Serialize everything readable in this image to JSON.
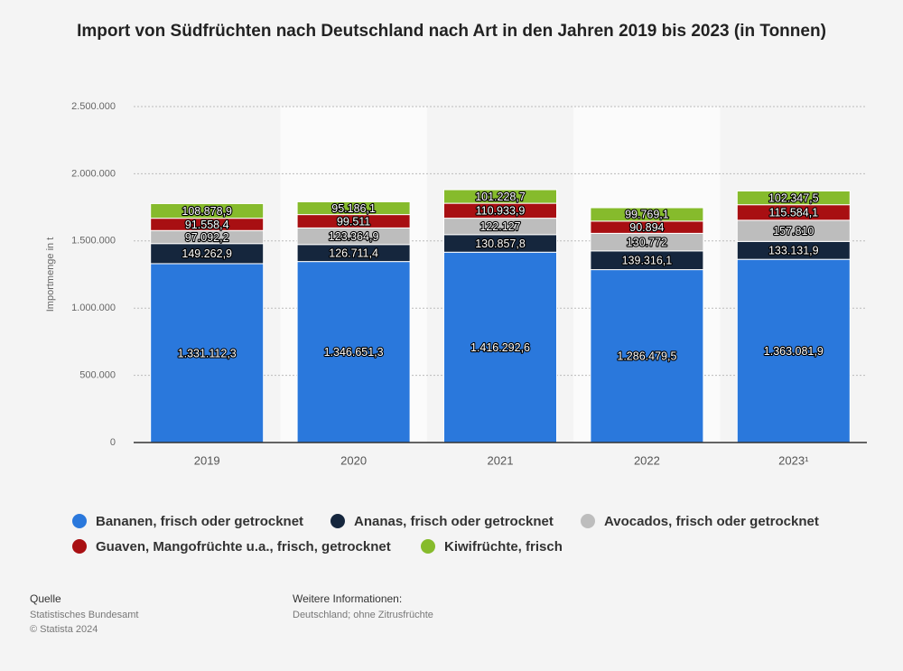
{
  "chart_data": {
    "type": "stacked-bar",
    "title": "Import von Südfrüchten nach Deutschland nach Art in den Jahren 2019 bis 2023 (in Tonnen)",
    "ylabel": "Importmenge in t",
    "categories": [
      "2019",
      "2020",
      "2021",
      "2022",
      "2023¹"
    ],
    "ylim": [
      0,
      2500000
    ],
    "yticks": [
      0,
      {
        "value": 500000,
        "label": "500.000"
      },
      {
        "value": 1000000,
        "label": "1.000.000"
      },
      {
        "value": 1500000,
        "label": "1.500.000"
      },
      {
        "value": 2000000,
        "label": "2.000.000"
      },
      {
        "value": 2500000,
        "label": "2.500.000"
      }
    ],
    "grid": true,
    "series": [
      {
        "name": "Bananen, frisch oder getrocknet",
        "color": "#2a78dc",
        "values": [
          1331112.3,
          1346651.3,
          1416292.6,
          1286479.5,
          1363081.9
        ],
        "value_labels": [
          "1.331.112,3",
          "1.346.651,3",
          "1.416.292,6",
          "1.286.479,5",
          "1.363.081,9"
        ]
      },
      {
        "name": "Ananas, frisch oder getrocknet",
        "color": "#15263d",
        "values": [
          149262.9,
          126711.4,
          130857.8,
          139316.1,
          133131.9
        ],
        "value_labels": [
          "149.262,9",
          "126.711,4",
          "130.857,8",
          "139.316,1",
          "133.131,9"
        ]
      },
      {
        "name": "Avocados, frisch oder getrocknet",
        "color": "#bdbdbd",
        "values": [
          97092.2,
          123364.9,
          122127,
          130772,
          157810
        ],
        "value_labels": [
          "97.092,2",
          "123.364,9",
          "122.127",
          "130.772",
          "157.810"
        ]
      },
      {
        "name": "Guaven, Mangofrüchte u.a., frisch, getrocknet",
        "color": "#a80f12",
        "values": [
          91558.4,
          99511,
          110933.9,
          90894,
          115584.1
        ],
        "value_labels": [
          "91.558,4",
          "99.511",
          "110.933,9",
          "90.894",
          "115.584,1"
        ]
      },
      {
        "name": "Kiwifrüchte, frisch",
        "color": "#86bb2c",
        "values": [
          108878.9,
          95186.1,
          101228.7,
          99769.1,
          102347.5
        ],
        "value_labels": [
          "108.878,9",
          "95.186,1",
          "101.228,7",
          "99.769,1",
          "102.347,5"
        ]
      }
    ]
  },
  "footer": {
    "source_heading": "Quelle",
    "source": "Statistisches Bundesamt",
    "copyright": "© Statista 2024",
    "info_heading": "Weitere Informationen:",
    "info": "Deutschland; ohne Zitrusfrüchte"
  }
}
